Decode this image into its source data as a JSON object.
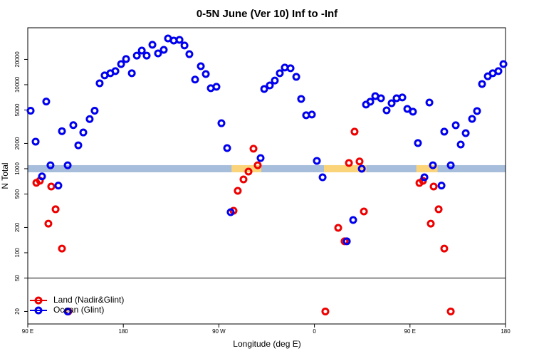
{
  "chart_data": {
    "type": "scatter",
    "title": "0-5N June (Ver 10)   Inf to -Inf",
    "x_label": "Longitude (deg E)",
    "y_label": "N Total",
    "xlim": [
      90,
      540
    ],
    "xticks": [
      {
        "value": 90,
        "label": "90 E"
      },
      {
        "value": 180,
        "label": "180"
      },
      {
        "value": 270,
        "label": "90 W"
      },
      {
        "value": 360,
        "label": "0"
      },
      {
        "value": 450,
        "label": "90 E"
      },
      {
        "value": 540,
        "label": "180"
      }
    ],
    "ylim": [
      14.2,
      47600
    ],
    "yticks": [
      20,
      50,
      100,
      200,
      500,
      1000,
      2000,
      5000,
      10000,
      20000
    ],
    "y_scale": "log",
    "zero_panel_divider": 50,
    "legend": "bottom-left",
    "band": {
      "value": 1000,
      "color": "#a6bddb",
      "highlight_color": "#fbd47a",
      "highlight_ranges": [
        [
          282,
          310
        ],
        [
          369,
          409
        ],
        [
          456,
          476
        ]
      ]
    },
    "series": [
      {
        "name": "Land (Nadir&Glint)",
        "color": "#ee0000",
        "x": [
          98.1,
          101.4,
          109.4,
          112.1,
          116.2,
          122.2,
          128.2,
          283.8,
          287.8,
          293.2,
          297.9,
          302.6,
          306.6,
          370.3,
          382.4,
          388.4,
          392.5,
          397.8,
          402.5,
          406.6,
          458.9,
          462.2,
          469.6,
          472.3,
          477.0,
          482.3,
          488.4
        ],
        "values": [
          680,
          720,
          222,
          614,
          329,
          112,
          20,
          316,
          546,
          746,
          925,
          1730,
          1100,
          20,
          198,
          137,
          1170,
          2760,
          1220,
          310,
          677,
          718,
          222,
          614,
          329,
          112,
          20
        ]
      },
      {
        "name": "Ocean (Glint)",
        "color": "#0000ee",
        "x": [
          92.7,
          97.4,
          103.4,
          107.4,
          111.4,
          118.8,
          122.2,
          127.6,
          132.9,
          137.6,
          142.3,
          148.3,
          153.0,
          157.7,
          162.4,
          167.8,
          172.5,
          177.9,
          182.6,
          188.0,
          192.7,
          197.4,
          202.0,
          207.4,
          212.7,
          218.1,
          222.1,
          227.5,
          232.9,
          237.6,
          242.2,
          247.6,
          253.0,
          257.7,
          262.4,
          267.7,
          272.4,
          277.8,
          281.1,
          309.3,
          312.7,
          318.0,
          322.7,
          327.4,
          332.1,
          337.5,
          342.9,
          347.5,
          352.2,
          357.6,
          362.3,
          367.7,
          390.5,
          396.5,
          404.6,
          408.6,
          412.6,
          417.3,
          422.7,
          428.0,
          432.7,
          437.4,
          442.8,
          447.5,
          452.8,
          457.5,
          463.6,
          468.3,
          471.6,
          479.7,
          482.3,
          488.4,
          493.1,
          497.8,
          502.5,
          508.5,
          513.2,
          517.9,
          523.3,
          528.0,
          533.3,
          538.0,
          127.6
        ],
        "values": [
          4900,
          2100,
          810,
          6300,
          1100,
          630,
          2800,
          1100,
          3300,
          1900,
          2700,
          3900,
          4900,
          10400,
          12900,
          13700,
          14500,
          17600,
          20200,
          13700,
          22200,
          25500,
          22200,
          29900,
          23600,
          26000,
          35500,
          33500,
          34200,
          29300,
          23100,
          11500,
          16600,
          13400,
          9080,
          9440,
          3480,
          1760,
          304,
          1340,
          8890,
          9810,
          11200,
          13700,
          16000,
          15700,
          12400,
          6770,
          4330,
          4410,
          1240,
          791,
          137,
          245,
          1000,
          5800,
          6270,
          7310,
          6900,
          4950,
          6020,
          6900,
          7050,
          5150,
          4770,
          2020,
          791,
          6140,
          1100,
          630,
          2760,
          1100,
          3290,
          1940,
          2650,
          3920,
          4860,
          10200,
          12600,
          13700,
          14500,
          17600,
          20
        ]
      }
    ]
  }
}
